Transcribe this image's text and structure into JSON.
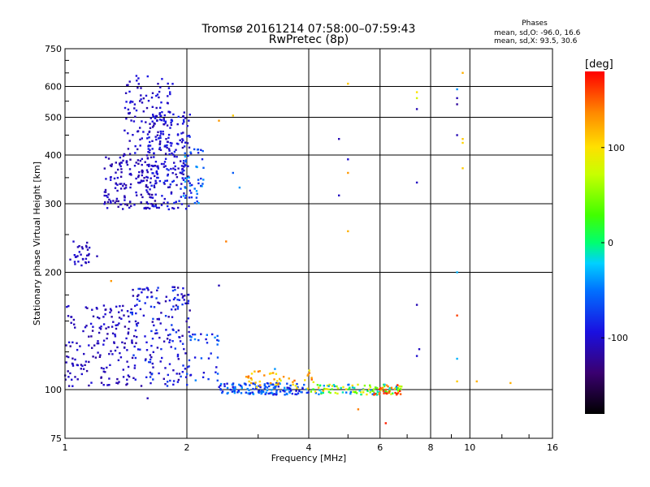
{
  "chart_data": {
    "type": "scatter",
    "title": "Tromsø 20161214 07:58:00–07:59:43",
    "subtitle": "RwPretec (8p)",
    "xlabel": "Frequency [MHz]",
    "ylabel": "Stationary phase Virtual Height [km]",
    "x_scale": "log",
    "y_scale": "log",
    "xlim": [
      1,
      16
    ],
    "ylim": [
      75,
      750
    ],
    "x_ticks": [
      1,
      2,
      4,
      6,
      8,
      10,
      16
    ],
    "x_tick_labels": [
      "1",
      "2",
      "4",
      "6",
      "8",
      "10",
      "16"
    ],
    "y_ticks": [
      75,
      100,
      200,
      300,
      400,
      500,
      600,
      750
    ],
    "y_tick_labels": [
      "75",
      "100",
      "200",
      "300",
      "400",
      "500",
      "600",
      "750"
    ],
    "grid": true,
    "stats": {
      "header": "Phases",
      "line_o": "mean, sd,O: -96.0, 16.6",
      "line_x": "mean, sd,X:  93.5, 30.6"
    },
    "colorbar": {
      "label": "[deg]",
      "range": [
        -180,
        180
      ],
      "ticks": [
        100,
        0,
        -100
      ],
      "tick_labels": [
        "100",
        "0",
        "-100"
      ]
    },
    "clusters": [
      {
        "fmin": 1.03,
        "fmax": 1.15,
        "hmin": 205,
        "hmax": 245,
        "n": 30,
        "pmin": -115,
        "pmax": -95
      },
      {
        "fmin": 1.25,
        "fmax": 1.7,
        "hmin": 290,
        "hmax": 400,
        "n": 160,
        "pmin": -120,
        "pmax": -95
      },
      {
        "fmin": 1.4,
        "fmax": 1.85,
        "hmin": 400,
        "hmax": 640,
        "n": 110,
        "pmin": -115,
        "pmax": -90
      },
      {
        "fmin": 1.6,
        "fmax": 2.05,
        "hmin": 290,
        "hmax": 520,
        "n": 200,
        "pmin": -115,
        "pmax": -80
      },
      {
        "fmin": 1.95,
        "fmax": 2.2,
        "hmin": 300,
        "hmax": 420,
        "n": 45,
        "pmin": -90,
        "pmax": -25
      },
      {
        "fmin": 1.0,
        "fmax": 1.5,
        "hmin": 102,
        "hmax": 165,
        "n": 170,
        "pmin": -120,
        "pmax": -95
      },
      {
        "fmin": 1.45,
        "fmax": 2.05,
        "hmin": 102,
        "hmax": 185,
        "n": 180,
        "pmin": -120,
        "pmax": -70
      },
      {
        "fmin": 2.0,
        "fmax": 2.4,
        "hmin": 102,
        "hmax": 140,
        "n": 30,
        "pmin": -100,
        "pmax": -40
      },
      {
        "fmin": 2.4,
        "fmax": 4.0,
        "hmin": 97,
        "hmax": 104,
        "n": 140,
        "pmin": -100,
        "pmax": -35
      },
      {
        "fmin": 2.8,
        "fmax": 4.2,
        "hmin": 100,
        "hmax": 112,
        "n": 45,
        "pmin": 80,
        "pmax": 150
      },
      {
        "fmin": 4.0,
        "fmax": 6.8,
        "hmin": 97,
        "hmax": 103,
        "n": 110,
        "pmin": -60,
        "pmax": 110
      },
      {
        "fmin": 5.8,
        "fmax": 6.8,
        "hmin": 97,
        "hmax": 103,
        "n": 25,
        "pmin": 130,
        "pmax": 170
      }
    ],
    "points": [
      {
        "f": 4.75,
        "h": 440,
        "p": -110
      },
      {
        "f": 4.75,
        "h": 315,
        "p": -105
      },
      {
        "f": 5.0,
        "h": 610,
        "p": 110
      },
      {
        "f": 5.0,
        "h": 390,
        "p": -100
      },
      {
        "f": 5.0,
        "h": 360,
        "p": 130
      },
      {
        "f": 5.0,
        "h": 255,
        "p": 120
      },
      {
        "f": 7.4,
        "h": 580,
        "p": 100
      },
      {
        "f": 7.4,
        "h": 560,
        "p": 80
      },
      {
        "f": 7.4,
        "h": 525,
        "p": -110
      },
      {
        "f": 7.4,
        "h": 340,
        "p": -105
      },
      {
        "f": 7.4,
        "h": 165,
        "p": -110
      },
      {
        "f": 7.5,
        "h": 127,
        "p": -105
      },
      {
        "f": 7.4,
        "h": 122,
        "p": -100
      },
      {
        "f": 9.3,
        "h": 590,
        "p": -40
      },
      {
        "f": 9.3,
        "h": 560,
        "p": -110
      },
      {
        "f": 9.3,
        "h": 540,
        "p": -120
      },
      {
        "f": 9.3,
        "h": 450,
        "p": -110
      },
      {
        "f": 9.3,
        "h": 200,
        "p": -30
      },
      {
        "f": 9.3,
        "h": 155,
        "p": 160
      },
      {
        "f": 9.3,
        "h": 120,
        "p": -30
      },
      {
        "f": 9.3,
        "h": 105,
        "p": 110
      },
      {
        "f": 9.6,
        "h": 650,
        "p": 120
      },
      {
        "f": 9.6,
        "h": 440,
        "p": 110
      },
      {
        "f": 9.6,
        "h": 430,
        "p": 105
      },
      {
        "f": 9.6,
        "h": 370,
        "p": 110
      },
      {
        "f": 10.4,
        "h": 105,
        "p": 120
      },
      {
        "f": 12.6,
        "h": 104,
        "p": 120
      },
      {
        "f": 2.4,
        "h": 185,
        "p": -110
      },
      {
        "f": 2.4,
        "h": 490,
        "p": 130
      },
      {
        "f": 2.6,
        "h": 505,
        "p": 110
      },
      {
        "f": 2.6,
        "h": 360,
        "p": -60
      },
      {
        "f": 2.7,
        "h": 330,
        "p": -40
      },
      {
        "f": 2.5,
        "h": 240,
        "p": 140
      },
      {
        "f": 1.6,
        "h": 95,
        "p": -110
      },
      {
        "f": 1.9,
        "h": 175,
        "p": -100
      },
      {
        "f": 1.3,
        "h": 190,
        "p": 130
      },
      {
        "f": 1.2,
        "h": 220,
        "p": -110
      },
      {
        "f": 5.3,
        "h": 89,
        "p": 140
      },
      {
        "f": 6.2,
        "h": 82,
        "p": 170
      },
      {
        "f": 5.8,
        "h": 97,
        "p": 160
      },
      {
        "f": 3.3,
        "h": 113,
        "p": -40
      }
    ]
  }
}
